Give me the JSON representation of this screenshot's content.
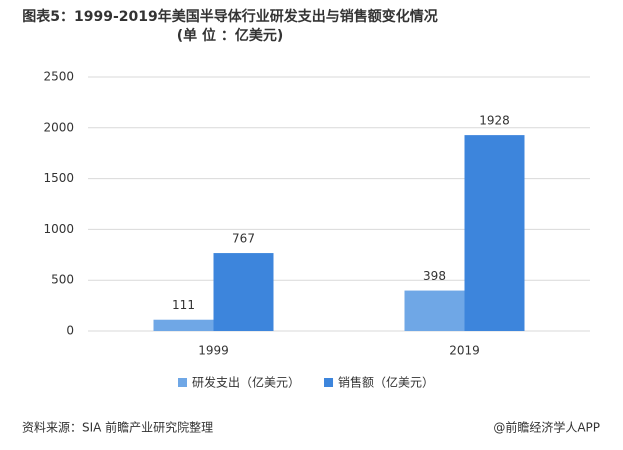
{
  "chart_data": {
    "type": "bar",
    "title": "图表5：1999-2019年美国半导体行业研发支出与销售额变化情况(单 位 ：亿美元)",
    "categories": [
      "1999",
      "2019"
    ],
    "series": [
      {
        "name": "研发支出（亿美元）",
        "color": "#6fa7e6",
        "values": [
          111,
          398
        ]
      },
      {
        "name": "销售额（亿美元）",
        "color": "#3d85dc",
        "values": [
          767,
          1928
        ]
      }
    ],
    "ylim": [
      0,
      2500
    ],
    "yticks": [
      0,
      500,
      1000,
      1500,
      2000,
      2500
    ],
    "grid": true,
    "legend": "bottom",
    "source": "资料来源：SIA 前瞻产业研究院整理",
    "brand": "@前瞻经济学人APP"
  }
}
